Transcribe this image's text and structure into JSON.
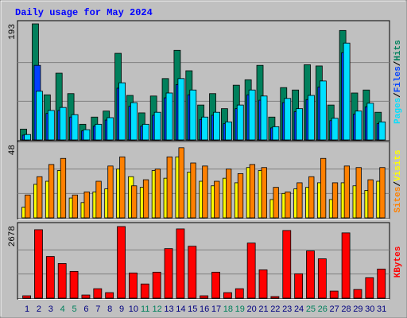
{
  "chart_data": [
    {
      "type": "bar",
      "title": "Daily usage for May 2024",
      "ylim": [
        0,
        193
      ],
      "yticks": [
        193
      ],
      "legend_separator": "/",
      "series": [
        {
          "name": "Hits",
          "color": "#00805c",
          "values": [
            18,
            193,
            75,
            111,
            77,
            26,
            38,
            48,
            144,
            74,
            45,
            73,
            102,
            149,
            115,
            58,
            77,
            52,
            91,
            100,
            124,
            38,
            87,
            83,
            125,
            123,
            58,
            182,
            78,
            83,
            46
          ]
        },
        {
          "name": "Files",
          "color": "#0040ff",
          "values": [
            8,
            124,
            44,
            49,
            38,
            15,
            23,
            33,
            86,
            56,
            23,
            41,
            70,
            92,
            75,
            34,
            41,
            27,
            52,
            75,
            66,
            20,
            62,
            47,
            67,
            88,
            32,
            145,
            43,
            55,
            27
          ]
        },
        {
          "name": "Pages",
          "color": "#00e0ff",
          "values": [
            9,
            81,
            49,
            54,
            42,
            17,
            26,
            37,
            95,
            62,
            26,
            46,
            78,
            102,
            83,
            38,
            46,
            30,
            58,
            83,
            73,
            22,
            69,
            52,
            74,
            98,
            36,
            161,
            48,
            61,
            30
          ]
        }
      ]
    },
    {
      "type": "bar",
      "ylim": [
        0,
        48
      ],
      "yticks": [
        48
      ],
      "legend_separator": "/",
      "series": [
        {
          "name": "Visits",
          "color": "#ffff00",
          "values": [
            7,
            22,
            24,
            31,
            13,
            10,
            17,
            19,
            32,
            27,
            20,
            31,
            26,
            40,
            30,
            24,
            21,
            26,
            23,
            33,
            31,
            12,
            16,
            19,
            20,
            23,
            12,
            23,
            21,
            18,
            24
          ]
        },
        {
          "name": "Sites",
          "color": "#ff8000",
          "values": [
            15,
            27,
            35,
            39,
            15,
            17,
            24,
            34,
            40,
            21,
            25,
            32,
            40,
            46,
            36,
            34,
            24,
            32,
            29,
            35,
            33,
            20,
            17,
            23,
            27,
            39,
            23,
            34,
            33,
            25,
            33
          ]
        }
      ]
    },
    {
      "type": "bar",
      "ylim": [
        0,
        2678
      ],
      "yticks": [
        2678
      ],
      "categories": [
        "1",
        "2",
        "3",
        "4",
        "5",
        "6",
        "7",
        "8",
        "9",
        "10",
        "11",
        "12",
        "13",
        "14",
        "15",
        "16",
        "17",
        "18",
        "19",
        "20",
        "21",
        "22",
        "23",
        "24",
        "25",
        "26",
        "27",
        "28",
        "29",
        "30",
        "31"
      ],
      "category_colors": [
        "#000080",
        "#000080",
        "#000080",
        "#00805c",
        "#00805c",
        "#000080",
        "#000080",
        "#000080",
        "#000080",
        "#000080",
        "#00805c",
        "#00805c",
        "#000080",
        "#000080",
        "#000080",
        "#000080",
        "#000080",
        "#00805c",
        "#00805c",
        "#000080",
        "#000080",
        "#000080",
        "#000080",
        "#000080",
        "#00805c",
        "#00805c",
        "#000080",
        "#000080",
        "#000080",
        "#000080",
        "#000080"
      ],
      "series": [
        {
          "name": "KBytes",
          "color": "#ff0000",
          "values": [
            87,
            2533,
            1543,
            1281,
            990,
            116,
            349,
            204,
            2650,
            932,
            524,
            961,
            1834,
            2562,
            1921,
            87,
            961,
            204,
            349,
            2038,
            1048,
            58,
            2504,
            902,
            1747,
            1456,
            262,
            2416,
            320,
            757,
            1077
          ]
        }
      ]
    }
  ]
}
